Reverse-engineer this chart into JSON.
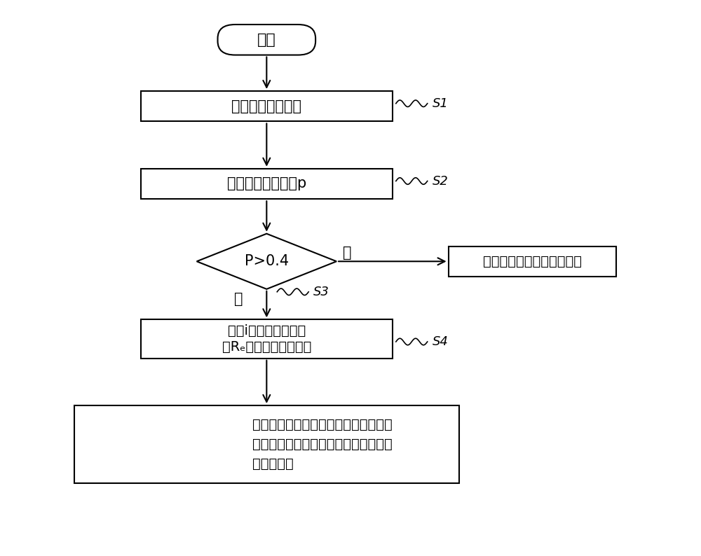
{
  "bg_color": "#ffffff",
  "line_color": "#000000",
  "box_fill": "#ffffff",
  "box_edge": "#000000",
  "start_label": "开始",
  "box1_label": "节点进行频谱感知",
  "box2_label": "计算候选簇头概率p",
  "diamond_label": "P>0.4",
  "box3_line1": "节点i成为候选簇头，",
  "box3_line2": "在Rₑ广播竞争簇头消息",
  "box4_line1": "候选簇头收到竞争簇头消息后，在邻候",
  "box4_line2": "选簇头集合中选取剩余能量最多的候选",
  "box4_line3": "簇头为簇头",
  "side_box_label": "选择离自己较近的簇头加入",
  "no_label": "否",
  "yes_label": "是",
  "s1_label": "S1",
  "s2_label": "S2",
  "s3_label": "S3",
  "s4_label": "S4",
  "fig_width": 10.0,
  "fig_height": 7.94,
  "dpi": 100
}
